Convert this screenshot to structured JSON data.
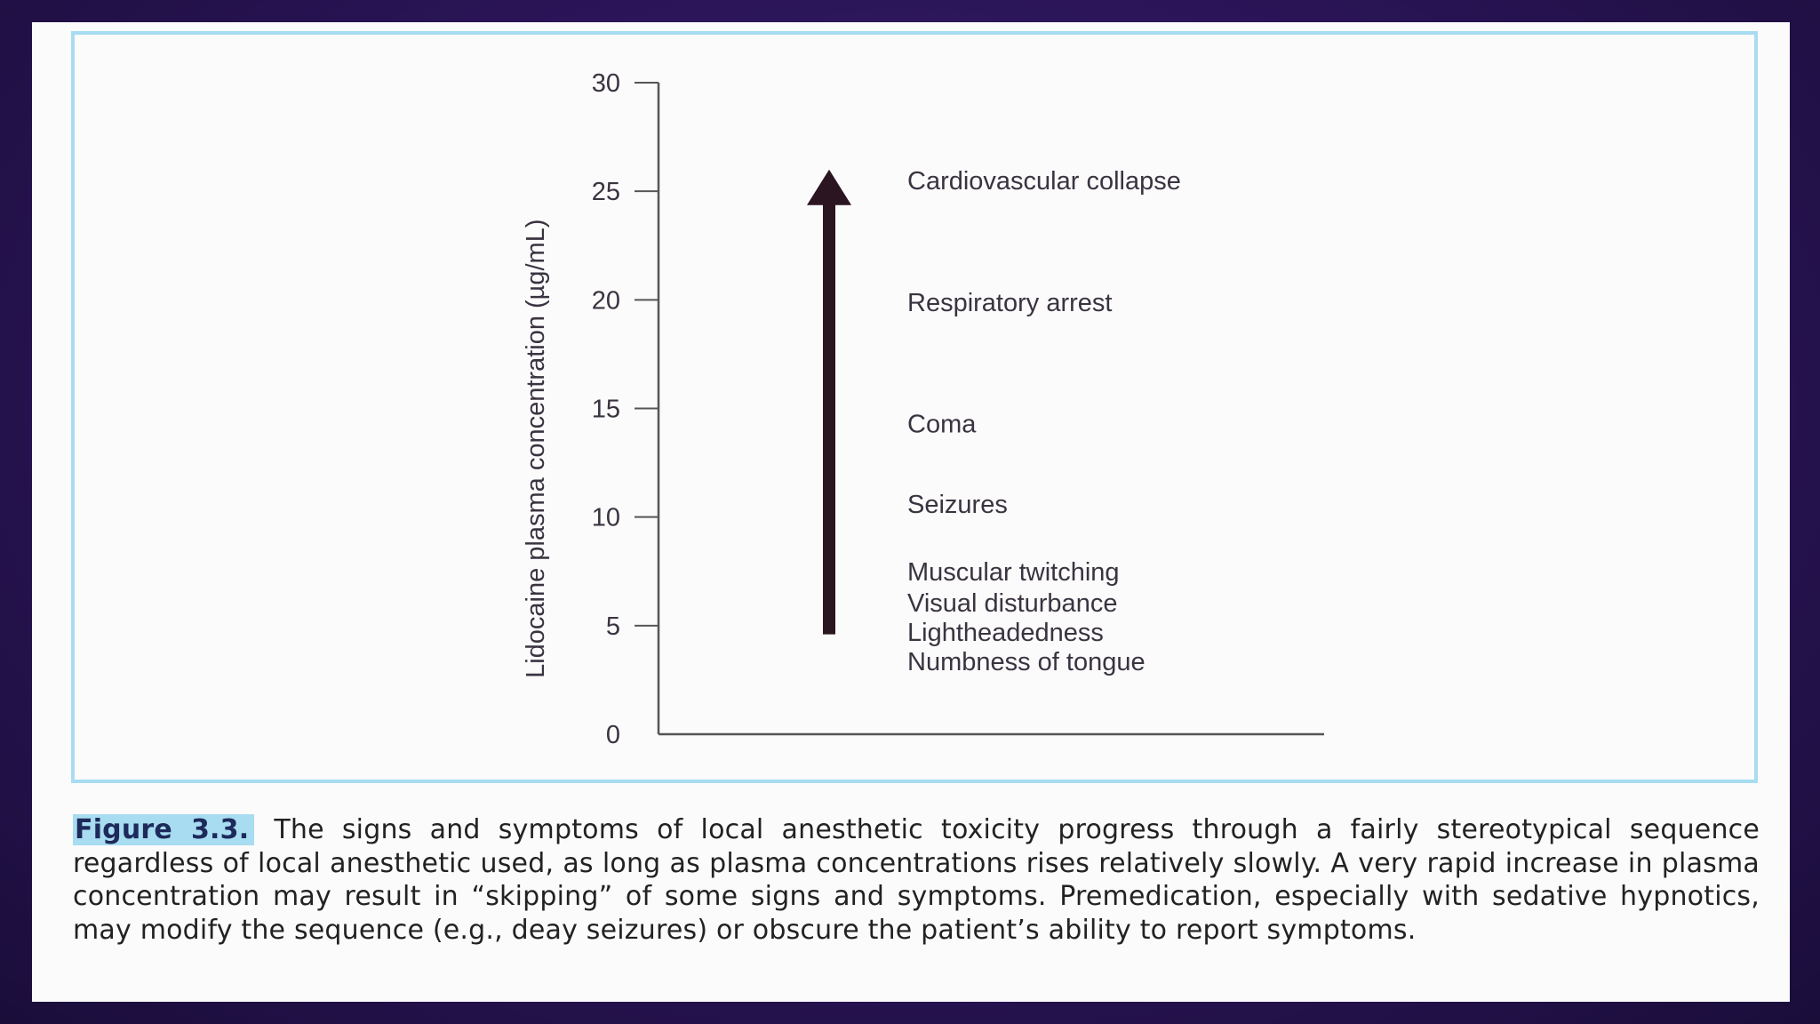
{
  "figure": {
    "label": "Figure 3.3.",
    "caption": "The signs and symptoms of local anesthetic toxicity progress through a fairly stereotypical sequence regardless of local anesthetic used, as long as plasma concentrations rises relatively slowly. A very rapid increase in plasma concentration may result in “skipping” of some signs and symptoms. Premedication, especially with sedative hypnotics, may modify the sequence (e.g., deay seizures) or obscure the patient’s ability to report symptoms."
  },
  "chart_data": {
    "type": "annotated-axis",
    "ylabel": "Lidocaine plasma concentration (µg/mL)",
    "ylim": [
      0,
      30
    ],
    "yticks": [
      0,
      5,
      10,
      15,
      20,
      25,
      30
    ],
    "arrow": {
      "from": 4.6,
      "to": 26
    },
    "annotations": [
      {
        "label": "Cardiovascular collapse",
        "y": 25.5
      },
      {
        "label": "Respiratory arrest",
        "y": 19.9
      },
      {
        "label": "Coma",
        "y": 14.3
      },
      {
        "label": "Seizures",
        "y": 10.6
      },
      {
        "label": "Muscular twitching",
        "y": 7.5
      },
      {
        "label": "Visual disturbance",
        "y": 6.05
      },
      {
        "label": "Lightheadedness",
        "y": 4.7
      },
      {
        "label": "Numbness of tongue",
        "y": 3.35
      }
    ],
    "colors": {
      "axis": "#555555",
      "arrow": "#2a1520",
      "text": "#3a3340"
    }
  }
}
